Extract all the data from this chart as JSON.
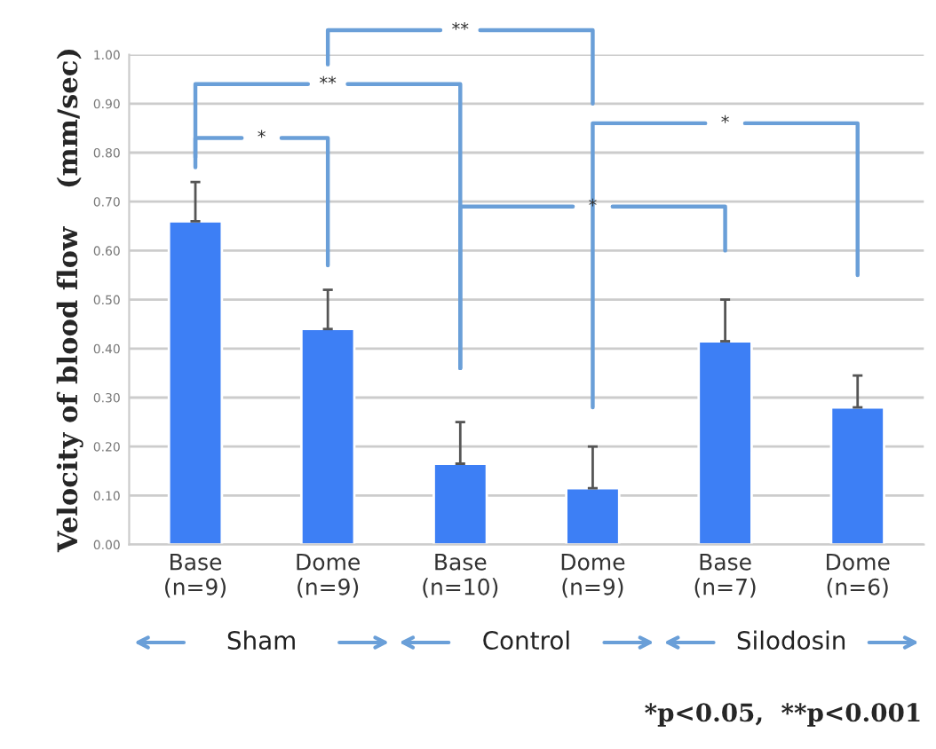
{
  "chart_data": {
    "type": "bar",
    "ylabel": "Velocity of blood flow    (mm/sec)",
    "categories": [
      "Base\n(n=9)",
      "Dome\n(n=9)",
      "Base\n(n=10)",
      "Dome\n(n=9)",
      "Base\n(n=7)",
      "Dome\n(n=6)"
    ],
    "values": [
      0.66,
      0.44,
      0.165,
      0.115,
      0.415,
      0.28
    ],
    "errors": [
      [
        0.66,
        0.74
      ],
      [
        0.44,
        0.52
      ],
      [
        0.165,
        0.25
      ],
      [
        0.115,
        0.2
      ],
      [
        0.415,
        0.5
      ],
      [
        0.28,
        0.345
      ]
    ],
    "color": "#3d7ff5",
    "ylim": [
      0,
      1
    ],
    "yticks": [
      {
        "value": 0,
        "label": "0.00"
      },
      {
        "value": 0.1,
        "label": "0.10"
      },
      {
        "value": 0.2,
        "label": "0.20"
      },
      {
        "value": 0.3,
        "label": "0.30"
      },
      {
        "value": 0.4,
        "label": "0.40"
      },
      {
        "value": 0.5,
        "label": "0.50"
      },
      {
        "value": 0.6,
        "label": "0.60"
      },
      {
        "value": 0.7,
        "label": "0.70"
      },
      {
        "value": 0.8,
        "label": "0.80"
      },
      {
        "value": 0.9,
        "label": "0.90"
      },
      {
        "value": 1,
        "label": "1.00"
      }
    ],
    "grid": "y",
    "legend": false,
    "annotations": [
      "*",
      "**",
      "**",
      "*",
      "*",
      "Sham",
      "Control",
      "Silodosin",
      "*p<0.05,  **p<0.001"
    ]
  }
}
